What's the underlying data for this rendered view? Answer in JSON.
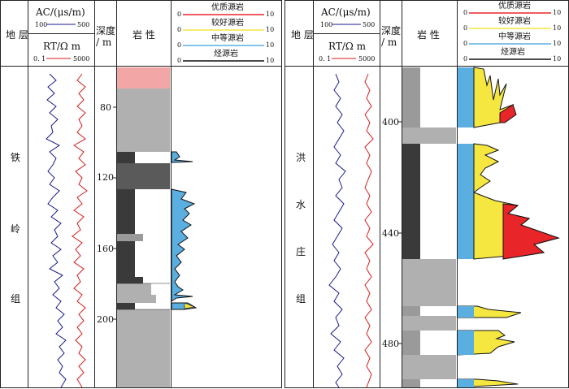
{
  "left": {
    "col_formation": "地 层",
    "ac_header": "AC/(μs/m)",
    "ac_min": "100",
    "ac_max": "500",
    "rt_header": "RT/Ω m",
    "rt_min": "0. 1",
    "rt_max": "5000",
    "depth_header": "深度\n/ m",
    "lith_header": "岩 性",
    "legend": [
      {
        "label": "优质源岩",
        "min": "0",
        "max": "10",
        "color": "#e8262a"
      },
      {
        "label": "较好源岩",
        "min": "0",
        "max": "10",
        "color": "#f5e640"
      },
      {
        "label": "中等源岩",
        "min": "0",
        "max": "10",
        "color": "#5aaee0"
      },
      {
        "label": "烃源岩",
        "min": "0",
        "max": "10",
        "color": "#111111"
      }
    ],
    "formation_chars": [
      "铁",
      "岭",
      "组"
    ],
    "depth_ticks": [
      "80",
      "120",
      "160",
      "200"
    ]
  },
  "right": {
    "col_formation": "地 层",
    "ac_header": "AC/(μs/m)",
    "ac_min": "100",
    "ac_max": "500",
    "rt_header": "RT/Ω m",
    "rt_min": "0. 1",
    "rt_max": "5000",
    "depth_header": "深度\n/ m",
    "lith_header": "岩 性",
    "legend": [
      {
        "label": "优质源岩",
        "min": "0",
        "max": "10",
        "color": "#e8262a"
      },
      {
        "label": "较好源岩",
        "min": "0",
        "max": "10",
        "color": "#f5e640"
      },
      {
        "label": "中等源岩",
        "min": "0",
        "max": "10",
        "color": "#5aaee0"
      },
      {
        "label": "烃源岩",
        "min": "0",
        "max": "10",
        "color": "#111111"
      }
    ],
    "formation_chars": [
      "洪",
      "水",
      "庄",
      "组"
    ],
    "depth_ticks": [
      "400",
      "440",
      "480"
    ]
  },
  "colors": {
    "ac_curve": "#1a1a8c",
    "rt_curve": "#d41c1c",
    "mudstone": "#3a3a3a",
    "silty_mudstone": "#b0b0b0",
    "marl": "#f3a6a6",
    "red": "#e8262a",
    "yellow": "#f5e640",
    "blue": "#5aaee0"
  }
}
